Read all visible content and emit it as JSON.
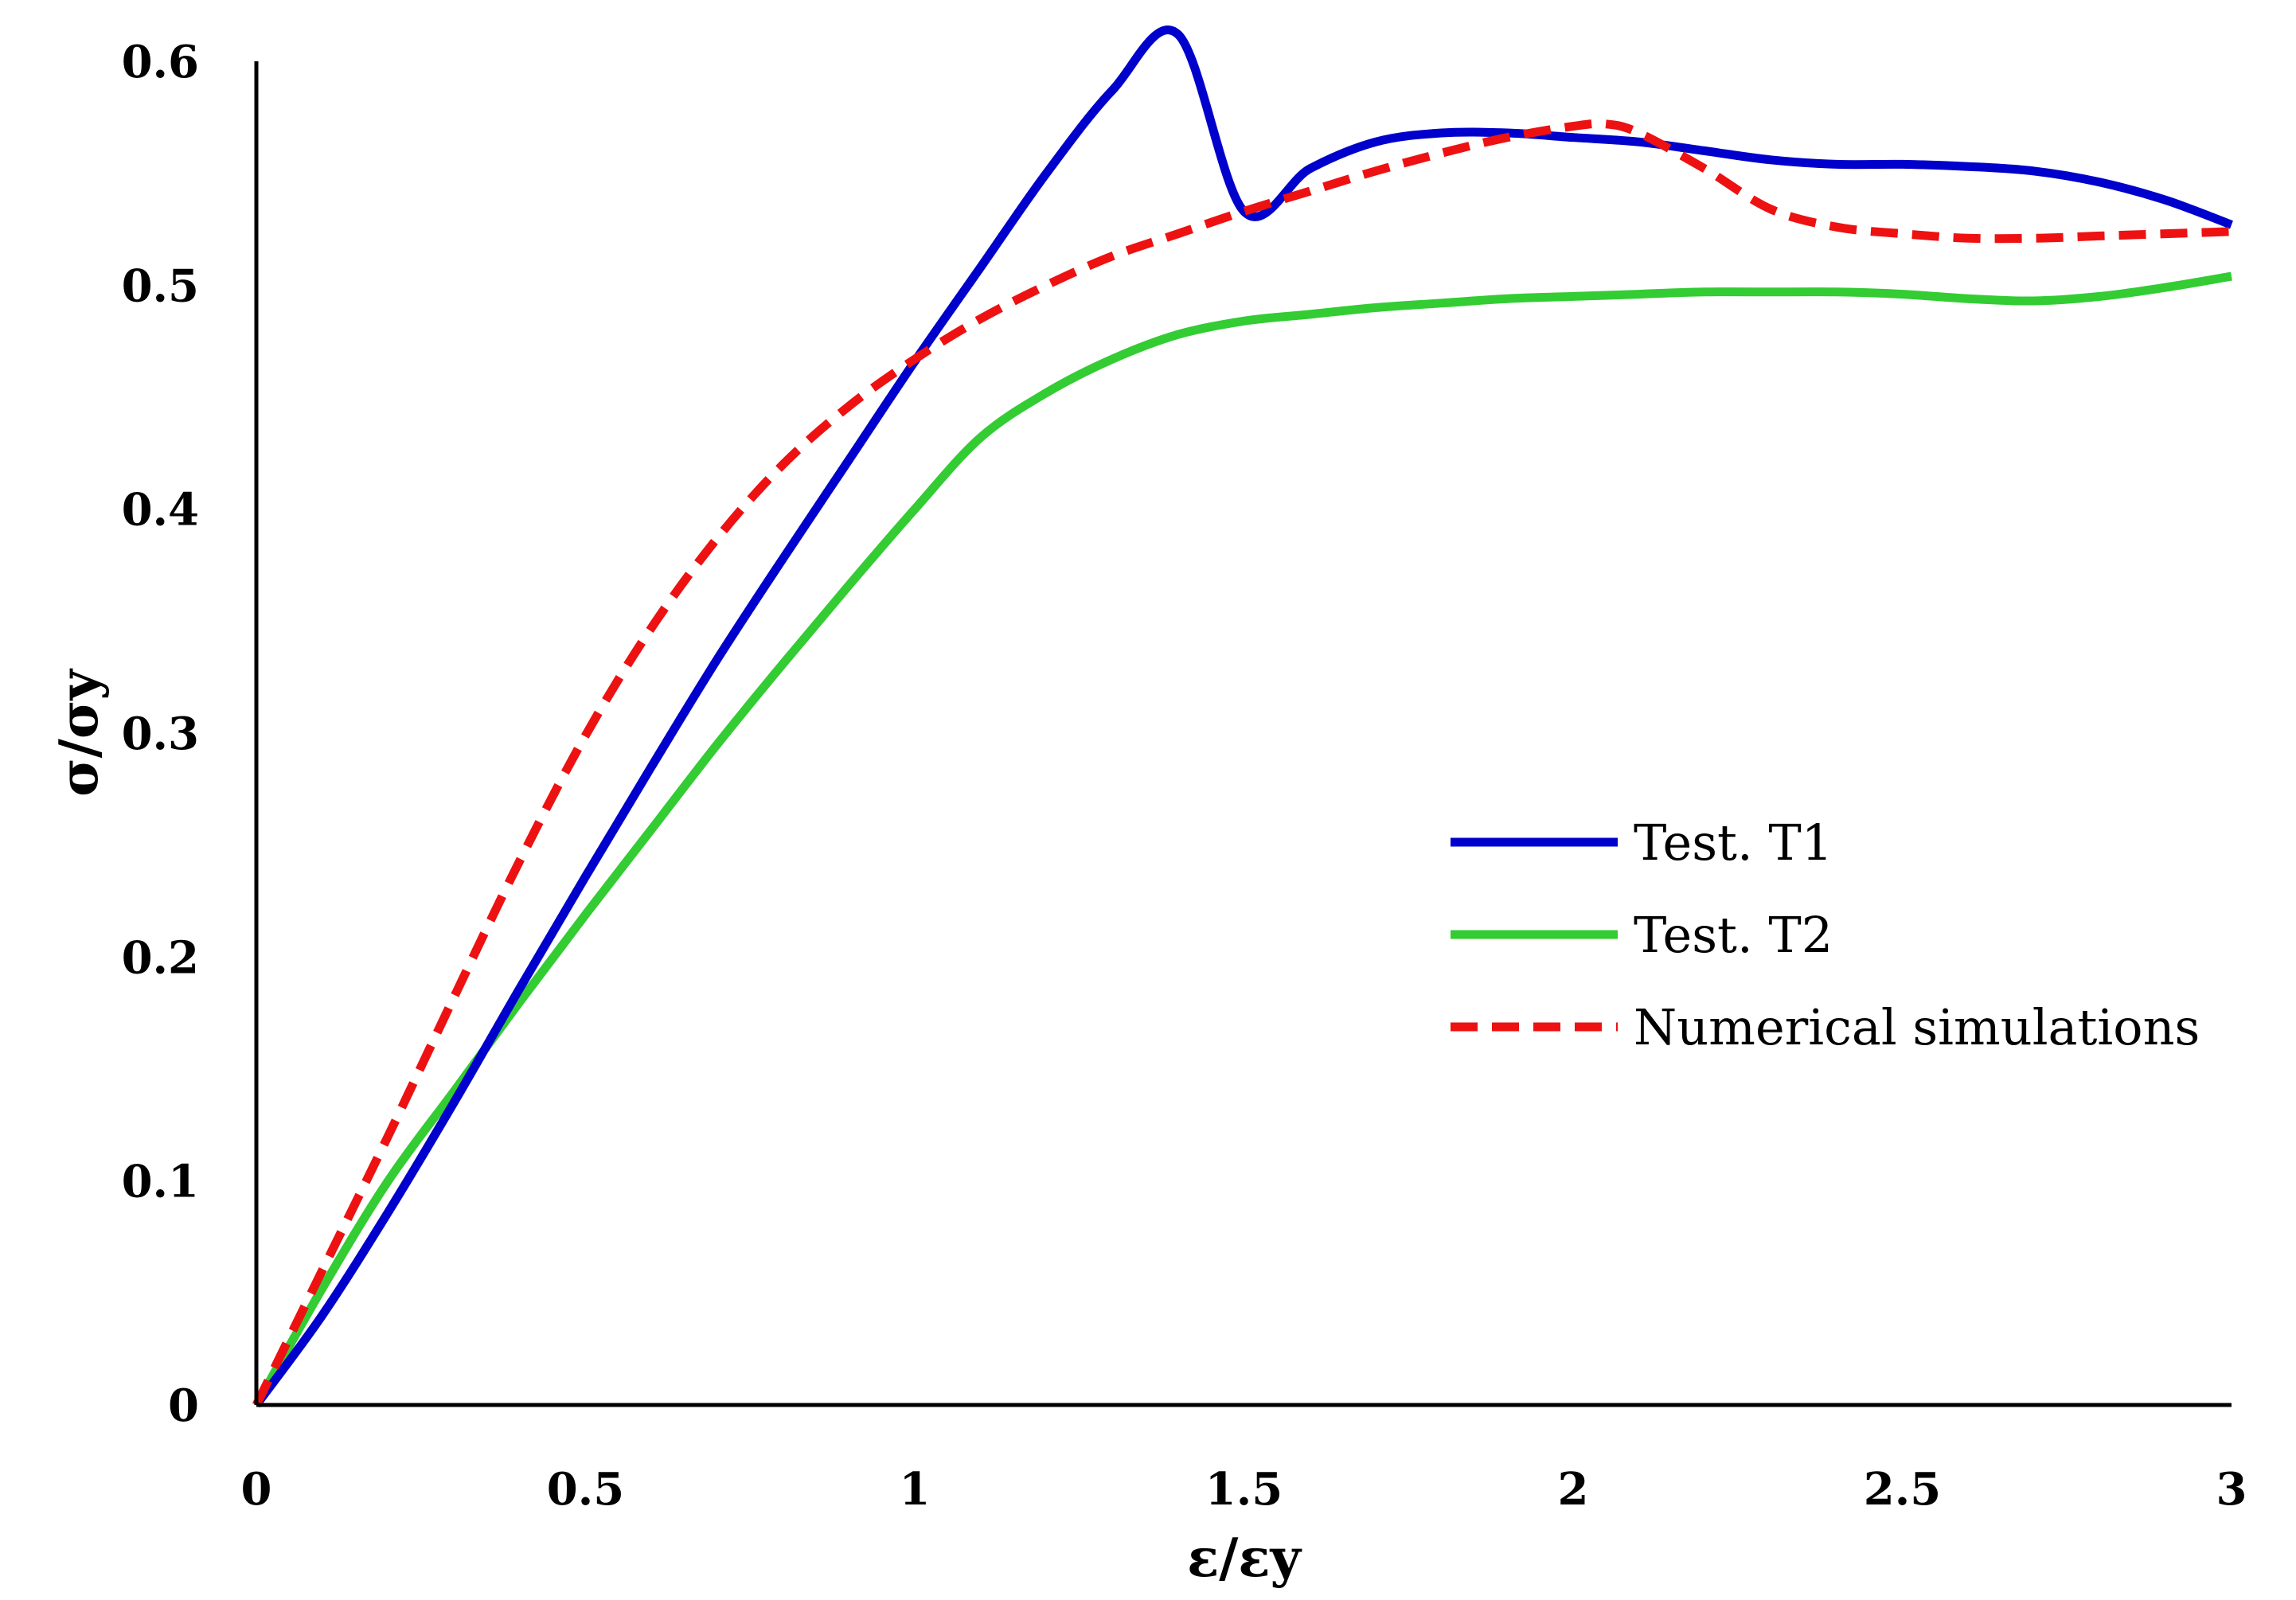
{
  "chart_data": {
    "type": "line",
    "title": "",
    "xlabel": "ε/εy",
    "ylabel": "σ/σy",
    "xlim": [
      0,
      3
    ],
    "ylim": [
      0,
      0.6
    ],
    "xticks": [
      0,
      0.5,
      1,
      1.5,
      2,
      2.5,
      3
    ],
    "xtick_labels": [
      "0",
      "0.5",
      "1",
      "1.5",
      "2",
      "2.5",
      "3"
    ],
    "yticks": [
      0,
      0.1,
      0.2,
      0.3,
      0.4,
      0.5,
      0.6
    ],
    "ytick_labels": [
      "0",
      "0.1",
      "0.2",
      "0.3",
      "0.4",
      "0.5",
      "0.6"
    ],
    "grid": false,
    "legend_position": "right-middle",
    "series": [
      {
        "name": "Test. T1",
        "color": "#0000cc",
        "dash": "solid",
        "points": [
          [
            0,
            0
          ],
          [
            0.1,
            0.04
          ],
          [
            0.2,
            0.086
          ],
          [
            0.3,
            0.135
          ],
          [
            0.4,
            0.186
          ],
          [
            0.5,
            0.236
          ],
          [
            0.6,
            0.285
          ],
          [
            0.7,
            0.333
          ],
          [
            0.8,
            0.378
          ],
          [
            0.9,
            0.422
          ],
          [
            1.0,
            0.466
          ],
          [
            1.1,
            0.508
          ],
          [
            1.2,
            0.55
          ],
          [
            1.3,
            0.587
          ],
          [
            1.4,
            0.612
          ],
          [
            1.5,
            0.533
          ],
          [
            1.6,
            0.552
          ],
          [
            1.7,
            0.564
          ],
          [
            1.8,
            0.568
          ],
          [
            1.9,
            0.568
          ],
          [
            2.0,
            0.566
          ],
          [
            2.1,
            0.564
          ],
          [
            2.2,
            0.56
          ],
          [
            2.3,
            0.556
          ],
          [
            2.4,
            0.554
          ],
          [
            2.5,
            0.554
          ],
          [
            2.6,
            0.553
          ],
          [
            2.7,
            0.551
          ],
          [
            2.8,
            0.546
          ],
          [
            2.9,
            0.538
          ],
          [
            3.0,
            0.527
          ]
        ]
      },
      {
        "name": "Test. T2",
        "color": "#33cc33",
        "dash": "solid",
        "points": [
          [
            0,
            0
          ],
          [
            0.1,
            0.052
          ],
          [
            0.2,
            0.1
          ],
          [
            0.3,
            0.14
          ],
          [
            0.4,
            0.18
          ],
          [
            0.5,
            0.219
          ],
          [
            0.6,
            0.257
          ],
          [
            0.7,
            0.295
          ],
          [
            0.8,
            0.331
          ],
          [
            0.9,
            0.366
          ],
          [
            1.0,
            0.4
          ],
          [
            1.1,
            0.432
          ],
          [
            1.2,
            0.452
          ],
          [
            1.3,
            0.467
          ],
          [
            1.4,
            0.478
          ],
          [
            1.5,
            0.484
          ],
          [
            1.6,
            0.487
          ],
          [
            1.7,
            0.49
          ],
          [
            1.8,
            0.492
          ],
          [
            1.9,
            0.494
          ],
          [
            2.0,
            0.495
          ],
          [
            2.1,
            0.496
          ],
          [
            2.2,
            0.497
          ],
          [
            2.3,
            0.497
          ],
          [
            2.4,
            0.497
          ],
          [
            2.5,
            0.496
          ],
          [
            2.6,
            0.494
          ],
          [
            2.7,
            0.493
          ],
          [
            2.8,
            0.495
          ],
          [
            2.9,
            0.499
          ],
          [
            3.0,
            0.504
          ]
        ]
      },
      {
        "name": "Numerical simulations",
        "color": "#ee1111",
        "dash": "dashed",
        "points": [
          [
            0,
            0
          ],
          [
            0.1,
            0.06
          ],
          [
            0.2,
            0.12
          ],
          [
            0.3,
            0.182
          ],
          [
            0.4,
            0.243
          ],
          [
            0.5,
            0.299
          ],
          [
            0.6,
            0.347
          ],
          [
            0.7,
            0.387
          ],
          [
            0.8,
            0.42
          ],
          [
            0.9,
            0.446
          ],
          [
            1.0,
            0.467
          ],
          [
            1.1,
            0.485
          ],
          [
            1.2,
            0.5
          ],
          [
            1.3,
            0.513
          ],
          [
            1.4,
            0.523
          ],
          [
            1.5,
            0.533
          ],
          [
            1.6,
            0.542
          ],
          [
            1.7,
            0.551
          ],
          [
            1.8,
            0.559
          ],
          [
            1.9,
            0.566
          ],
          [
            2.0,
            0.571
          ],
          [
            2.05,
            0.572
          ],
          [
            2.1,
            0.568
          ],
          [
            2.2,
            0.552
          ],
          [
            2.3,
            0.534
          ],
          [
            2.4,
            0.526
          ],
          [
            2.5,
            0.523
          ],
          [
            2.6,
            0.521
          ],
          [
            2.7,
            0.521
          ],
          [
            2.8,
            0.522
          ],
          [
            2.9,
            0.523
          ],
          [
            3.0,
            0.524
          ]
        ]
      }
    ]
  }
}
